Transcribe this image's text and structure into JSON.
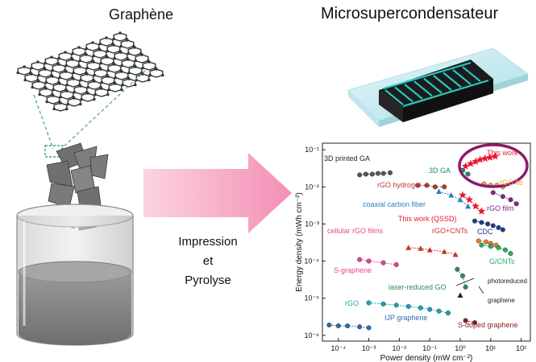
{
  "titles": {
    "left": "Graphène",
    "right": "Microsupercondensateur"
  },
  "process": {
    "line1": "Impression",
    "line2": "et",
    "line3": "Pyrolyse"
  },
  "colors": {
    "arrow": "#f5a9c4",
    "highlight_ring": "#8b1a6b",
    "device_teal": "#26c9c0",
    "device_body": "#1c1c1c"
  },
  "chart_data": {
    "type": "scatter",
    "xlabel": "Power density (mW cm⁻²)",
    "ylabel": "Energy density (mWh cm⁻²)",
    "xscale": "log",
    "yscale": "log",
    "xlim": [
      3e-05,
      200
    ],
    "ylim": [
      7e-07,
      0.15
    ],
    "x_ticks": [
      "10⁻⁴",
      "10⁻³",
      "10⁻²",
      "10⁻¹",
      "10⁰",
      "10¹",
      "10²"
    ],
    "y_ticks": [
      "10⁻¹",
      "10⁻²",
      "10⁻³",
      "10⁻⁴",
      "10⁻⁵",
      "10⁻⁶"
    ],
    "series": [
      {
        "name": "This work",
        "color": "#e8192c",
        "marker": "star",
        "x": [
          1.5,
          2.2,
          3.2,
          4.5,
          6.5,
          9.5,
          14
        ],
        "y": [
          0.036,
          0.042,
          0.048,
          0.054,
          0.058,
          0.062,
          0.066
        ]
      },
      {
        "name": "3D printed GA",
        "color": "#555555",
        "marker": "circle",
        "x": [
          0.0005,
          0.0008,
          0.0013,
          0.002,
          0.003,
          0.005
        ],
        "y": [
          0.021,
          0.022,
          0.022,
          0.023,
          0.023,
          0.024
        ]
      },
      {
        "name": "3D GA",
        "color": "#1a8f6e",
        "marker": "circle",
        "x": [
          1.2,
          1.8
        ],
        "y": [
          0.028,
          0.022
        ]
      },
      {
        "name": "rGO hydrogel",
        "color": "#b03a2e",
        "marker": "circle",
        "x": [
          0.04,
          0.08,
          0.15,
          0.3
        ],
        "y": [
          0.011,
          0.011,
          0.01,
          0.01
        ]
      },
      {
        "name": "rGO fiber",
        "color": "#f0a030",
        "marker": "circle",
        "x": [
          6,
          10,
          16,
          25
        ],
        "y": [
          0.012,
          0.011,
          0.011,
          0.01
        ]
      },
      {
        "name": "coaxial carbon fiber",
        "color": "#2c7fb8",
        "marker": "triangle",
        "x": [
          0.2,
          0.5,
          1,
          1.8
        ],
        "y": [
          0.0075,
          0.006,
          0.0045,
          0.003
        ]
      },
      {
        "name": "rGO film",
        "color": "#7b2a7b",
        "marker": "circle",
        "x": [
          12,
          25,
          45,
          70
        ],
        "y": [
          0.007,
          0.0055,
          0.0045,
          0.0035
        ]
      },
      {
        "name": "This work (QSSD)",
        "color": "#e8192c",
        "marker": "star",
        "x": [
          1.2,
          2,
          3.2,
          5
        ],
        "y": [
          0.006,
          0.0045,
          0.003,
          0.0022
        ]
      },
      {
        "name": "CDC",
        "color": "#1f3a93",
        "marker": "circle",
        "x": [
          3,
          5,
          8,
          12,
          18,
          25
        ],
        "y": [
          0.0012,
          0.0011,
          0.001,
          0.0009,
          0.0008,
          0.0007
        ]
      },
      {
        "name": "rGO+CNTs",
        "color": "#c0392b",
        "marker": "triangle",
        "x": [
          0.02,
          0.05,
          0.1,
          0.3,
          0.7
        ],
        "y": [
          0.00023,
          0.00022,
          0.0002,
          0.00018,
          0.00015
        ]
      },
      {
        "name": "cellular rGO films",
        "color": "#e67e22",
        "marker": "circle",
        "x": [
          4,
          7,
          10,
          15
        ],
        "y": [
          0.00035,
          0.00033,
          0.0003,
          0.00027
        ]
      },
      {
        "name": "G/CNTs",
        "color": "#27ae60",
        "marker": "circle",
        "x": [
          5,
          10,
          18,
          30,
          45
        ],
        "y": [
          0.00027,
          0.00025,
          0.00023,
          0.0002,
          0.00016
        ]
      },
      {
        "name": "S-graphene",
        "color": "#e84393",
        "marker": "circle",
        "x": [
          0.0005,
          0.001,
          0.003,
          0.008
        ],
        "y": [
          0.00011,
          0.0001,
          9e-05,
          8e-05
        ]
      },
      {
        "name": "laser-reduced GO",
        "color": "#2e8b57",
        "marker": "circle",
        "x": [
          0.8,
          1.2,
          1.5
        ],
        "y": [
          6e-05,
          4e-05,
          2e-05
        ]
      },
      {
        "name": "photoreduced graphene",
        "color": "#222222",
        "marker": "triangle",
        "x": [
          1.0
        ],
        "y": [
          1.2e-05
        ]
      },
      {
        "name": "rGO",
        "color": "#17a2b8",
        "marker": "circle",
        "x": [
          0.001,
          0.003,
          0.008,
          0.02,
          0.05,
          0.1,
          0.2,
          0.4
        ],
        "y": [
          7.5e-06,
          7e-06,
          6.5e-06,
          6e-06,
          5.5e-06,
          5e-06,
          4.5e-06,
          4e-06
        ]
      },
      {
        "name": "IJP graphene",
        "color": "#2c6db0",
        "marker": "circle",
        "x": [
          5e-05,
          0.0001,
          0.0002,
          0.0005,
          0.001
        ],
        "y": [
          1.9e-06,
          1.8e-06,
          1.8e-06,
          1.7e-06,
          1.6e-06
        ]
      },
      {
        "name": "S-doped graphene",
        "color": "#8b1a1a",
        "marker": "circle",
        "x": [
          1.5,
          3
        ],
        "y": [
          2.5e-06,
          2.2e-06
        ]
      }
    ],
    "labels": [
      {
        "text": "3D printed GA",
        "color": "#222222",
        "series": "3D printed GA"
      },
      {
        "text": "3D GA",
        "color": "#1a8f6e"
      },
      {
        "text": "This work",
        "color": "#e8192c"
      },
      {
        "text": "rGO hydrogel",
        "color": "#b03a2e"
      },
      {
        "text": "rGO fib",
        "color": "#f0a030"
      },
      {
        "text": "coaxial carbon fiber",
        "color": "#2c7fb8"
      },
      {
        "text": "rGO film",
        "color": "#7b2a7b"
      },
      {
        "text": "This work (QSSD)",
        "color": "#e8192c"
      },
      {
        "text": "CDC",
        "color": "#1f3a93"
      },
      {
        "text": "cellular rGO films",
        "color": "#e84393"
      },
      {
        "text": "rGO+CNTs",
        "color": "#c0392b"
      },
      {
        "text": "G/CNTs",
        "color": "#27ae60"
      },
      {
        "text": "S-graphene",
        "color": "#e84393"
      },
      {
        "text": "laser-reduced GO",
        "color": "#2e8b57"
      },
      {
        "text": "photoreduced",
        "color": "#222222"
      },
      {
        "text": "graphene",
        "color": "#222222"
      },
      {
        "text": "rGO",
        "color": "#17a2b8"
      },
      {
        "text": "IJP graphene",
        "color": "#2c6db0"
      },
      {
        "text": "S-doped graphene",
        "color": "#8b1a1a"
      }
    ]
  }
}
